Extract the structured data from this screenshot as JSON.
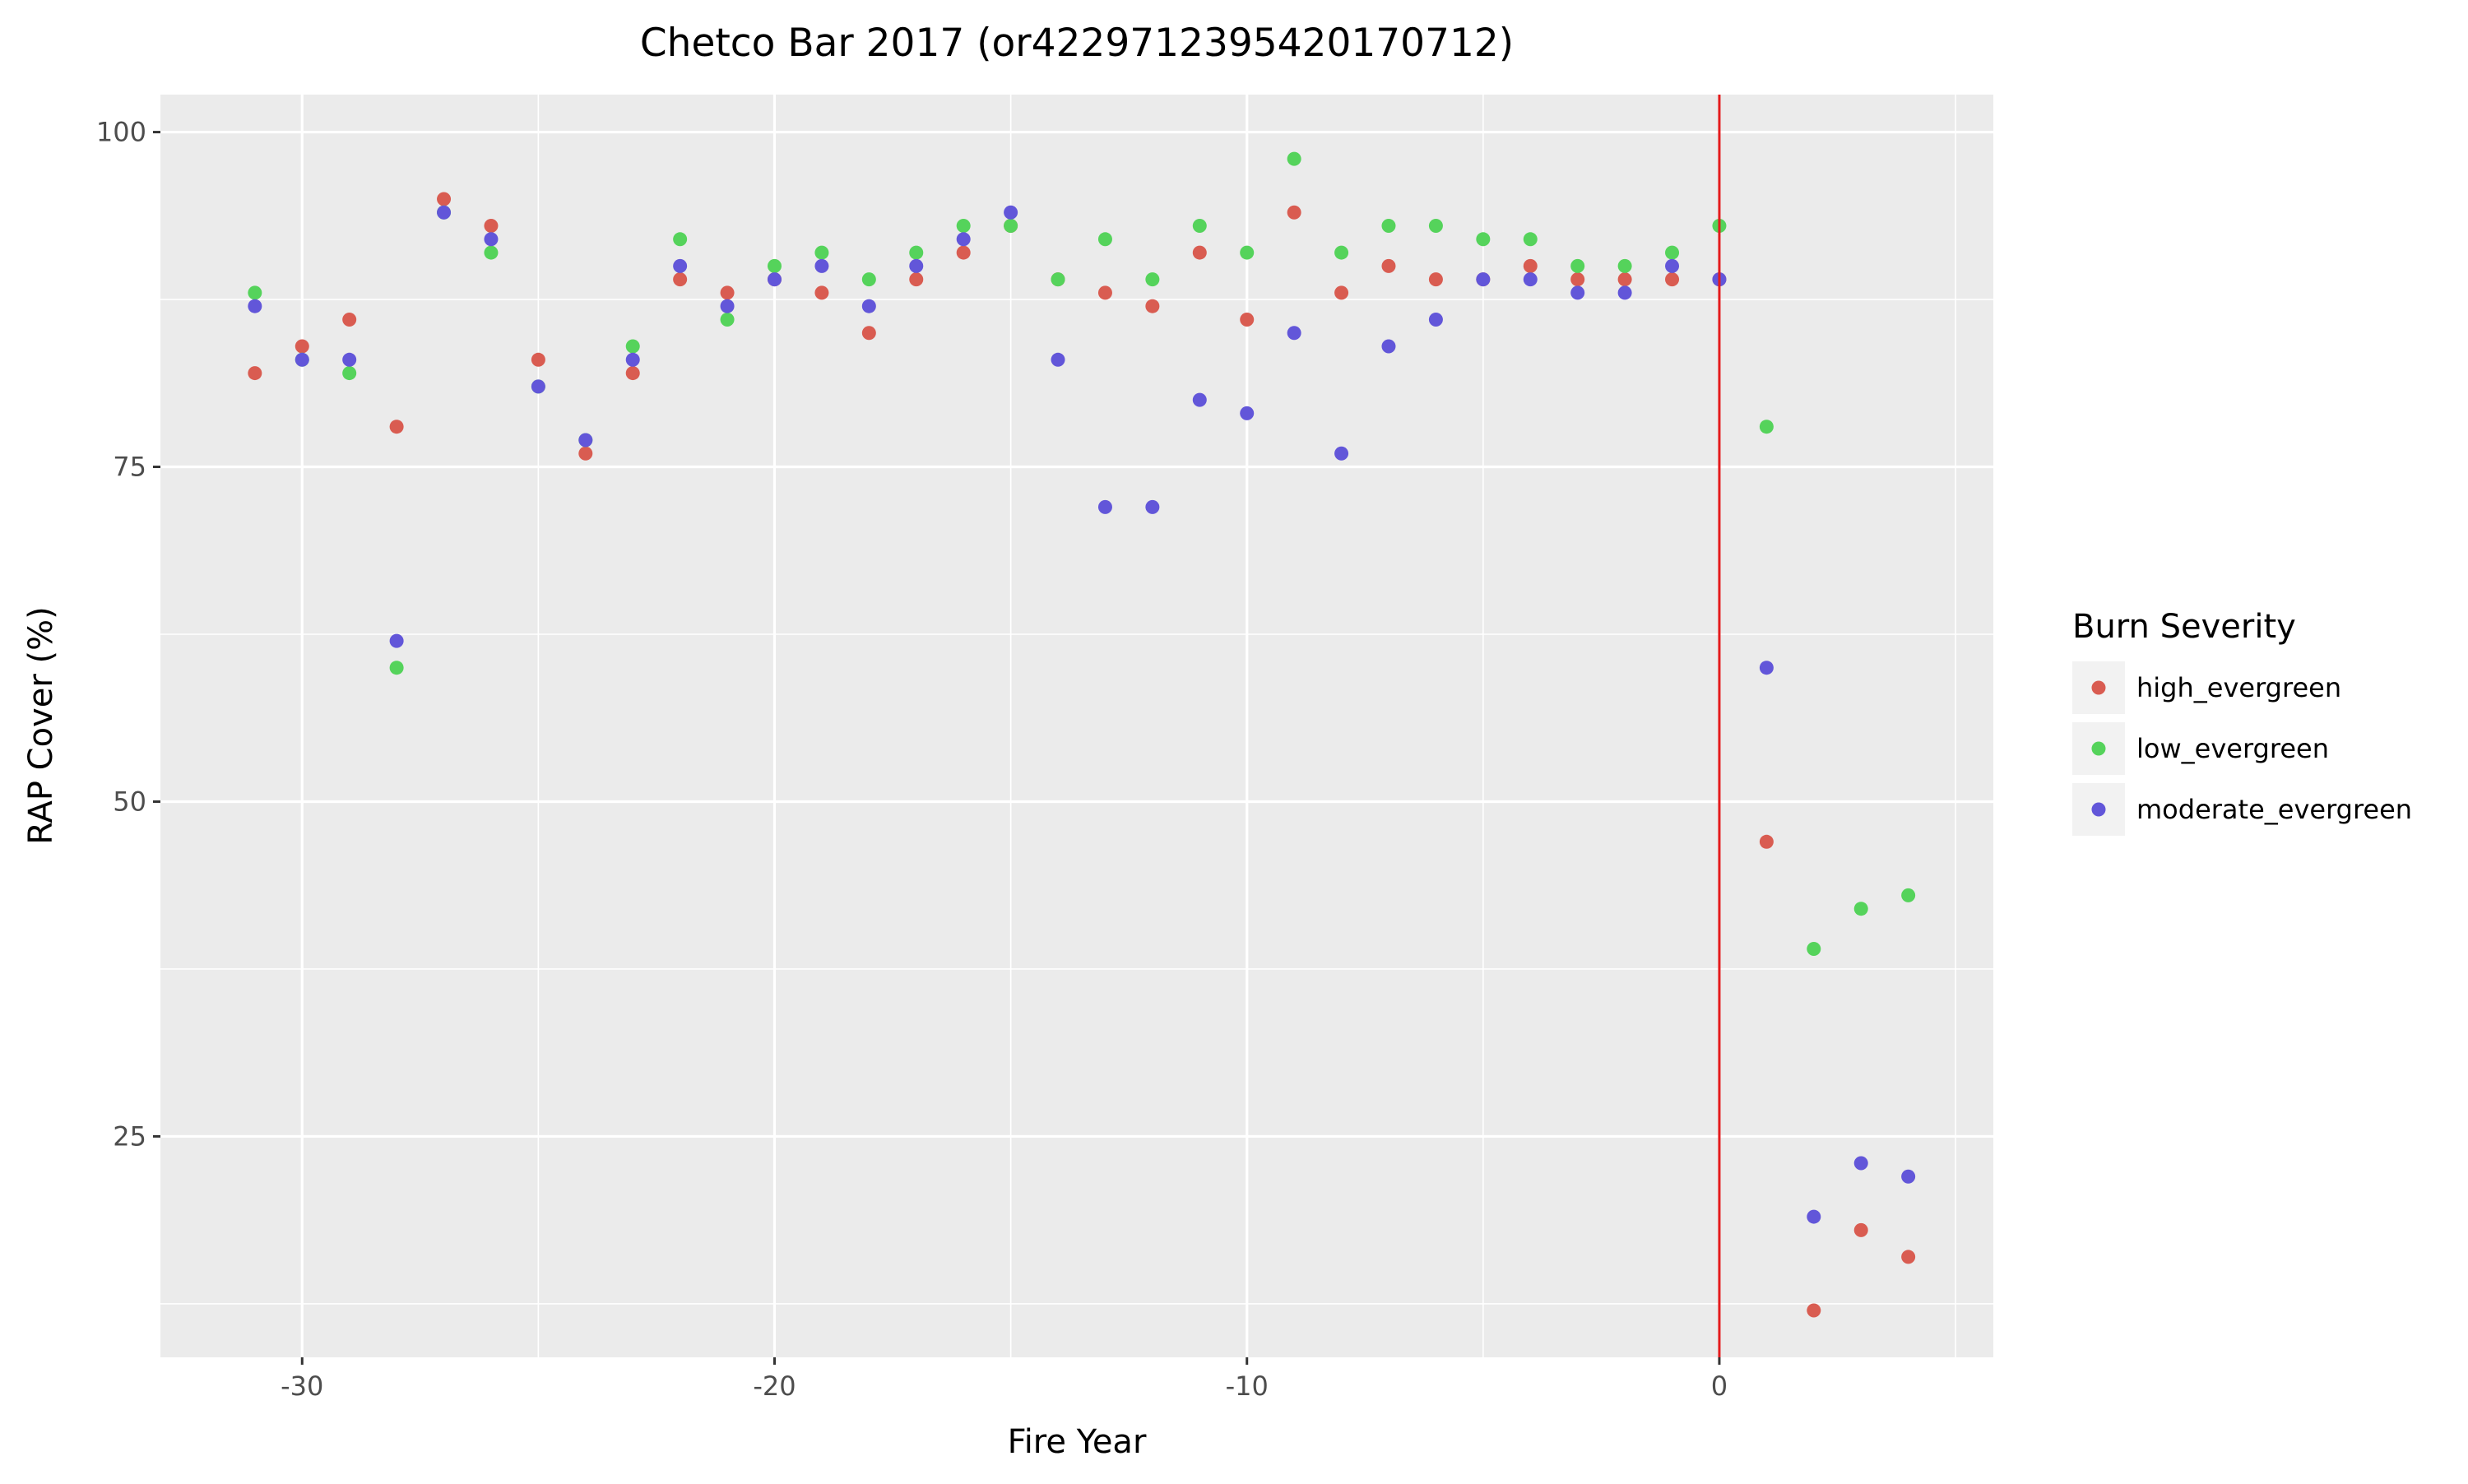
{
  "chart_data": {
    "type": "scatter",
    "title": "Chetco Bar 2017 (or4229712395420170712)",
    "xlabel": "Fire Year",
    "ylabel": "RAP Cover (%)",
    "xlim": [
      -33,
      5.8
    ],
    "ylim": [
      8.5,
      102.8
    ],
    "x_ticks": [
      -30,
      -20,
      -10,
      0
    ],
    "x_tick_labels": [
      "-30",
      "-20",
      "-10",
      "0"
    ],
    "x_minor_ticks": [
      -25,
      -15,
      -5,
      5
    ],
    "y_ticks": [
      25,
      50,
      75,
      100
    ],
    "y_tick_labels": [
      "25",
      "50",
      "75",
      "100"
    ],
    "y_minor_ticks": [
      12.5,
      37.5,
      62.5,
      87.5
    ],
    "grid": true,
    "background": "#ebebeb",
    "reference_line": {
      "x": 0,
      "color": "#e41a1c"
    },
    "legend": {
      "title": "Burn Severity",
      "position": "right"
    },
    "series": [
      {
        "name": "high_evergreen",
        "color": "#d95c51",
        "points": [
          [
            -31,
            82
          ],
          [
            -30,
            84
          ],
          [
            -29,
            86
          ],
          [
            -28,
            78
          ],
          [
            -27,
            95
          ],
          [
            -26,
            93
          ],
          [
            -25,
            83
          ],
          [
            -24,
            76
          ],
          [
            -23,
            82
          ],
          [
            -22,
            89
          ],
          [
            -21,
            88
          ],
          [
            -20,
            89
          ],
          [
            -19,
            88
          ],
          [
            -18,
            85
          ],
          [
            -17,
            89
          ],
          [
            -16,
            91
          ],
          [
            -15,
            93
          ],
          [
            -14,
            89
          ],
          [
            -13,
            88
          ],
          [
            -12,
            87
          ],
          [
            -11,
            91
          ],
          [
            -10,
            86
          ],
          [
            -9,
            94
          ],
          [
            -8,
            88
          ],
          [
            -7,
            90
          ],
          [
            -6,
            89
          ],
          [
            -5,
            89
          ],
          [
            -4,
            90
          ],
          [
            -3,
            89
          ],
          [
            -2,
            89
          ],
          [
            -1,
            89
          ],
          [
            0,
            89
          ],
          [
            1,
            47
          ],
          [
            2,
            12
          ],
          [
            3,
            18
          ],
          [
            4,
            16
          ]
        ]
      },
      {
        "name": "low_evergreen",
        "color": "#55d35b",
        "points": [
          [
            -31,
            88
          ],
          [
            -30,
            83
          ],
          [
            -29,
            82
          ],
          [
            -28,
            60
          ],
          [
            -27,
            94
          ],
          [
            -26,
            91
          ],
          [
            -25,
            81
          ],
          [
            -24,
            77
          ],
          [
            -23,
            84
          ],
          [
            -22,
            92
          ],
          [
            -21,
            86
          ],
          [
            -20,
            90
          ],
          [
            -19,
            91
          ],
          [
            -18,
            89
          ],
          [
            -17,
            91
          ],
          [
            -16,
            93
          ],
          [
            -15,
            93
          ],
          [
            -14,
            89
          ],
          [
            -13,
            92
          ],
          [
            -12,
            89
          ],
          [
            -11,
            93
          ],
          [
            -10,
            91
          ],
          [
            -9,
            98
          ],
          [
            -8,
            91
          ],
          [
            -7,
            93
          ],
          [
            -6,
            93
          ],
          [
            -5,
            92
          ],
          [
            -4,
            92
          ],
          [
            -3,
            90
          ],
          [
            -2,
            90
          ],
          [
            -1,
            91
          ],
          [
            0,
            93
          ],
          [
            1,
            78
          ],
          [
            2,
            39
          ],
          [
            3,
            42
          ],
          [
            4,
            43
          ]
        ]
      },
      {
        "name": "moderate_evergreen",
        "color": "#6256d9",
        "points": [
          [
            -31,
            87
          ],
          [
            -30,
            83
          ],
          [
            -29,
            83
          ],
          [
            -28,
            62
          ],
          [
            -27,
            94
          ],
          [
            -26,
            92
          ],
          [
            -25,
            81
          ],
          [
            -24,
            77
          ],
          [
            -23,
            83
          ],
          [
            -22,
            90
          ],
          [
            -21,
            87
          ],
          [
            -20,
            89
          ],
          [
            -19,
            90
          ],
          [
            -18,
            87
          ],
          [
            -17,
            90
          ],
          [
            -16,
            92
          ],
          [
            -15,
            94
          ],
          [
            -14,
            83
          ],
          [
            -13,
            72
          ],
          [
            -12,
            72
          ],
          [
            -11,
            80
          ],
          [
            -10,
            79
          ],
          [
            -9,
            85
          ],
          [
            -8,
            76
          ],
          [
            -7,
            84
          ],
          [
            -6,
            86
          ],
          [
            -5,
            89
          ],
          [
            -4,
            89
          ],
          [
            -3,
            88
          ],
          [
            -2,
            88
          ],
          [
            -1,
            90
          ],
          [
            0,
            89
          ],
          [
            1,
            60
          ],
          [
            2,
            19
          ],
          [
            3,
            23
          ],
          [
            4,
            22
          ]
        ]
      }
    ]
  }
}
